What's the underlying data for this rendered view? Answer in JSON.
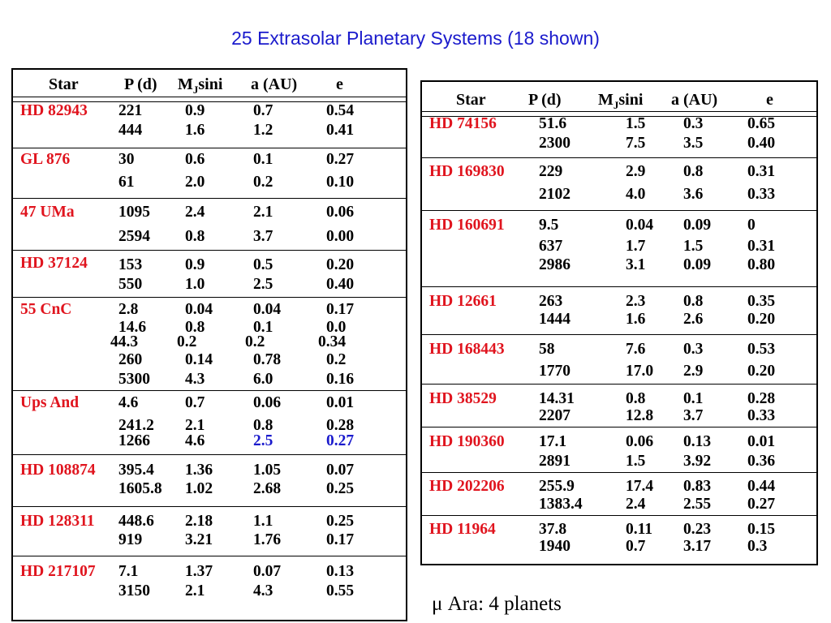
{
  "title": "25 Extrasolar Planetary Systems (18 shown)",
  "header": {
    "star": "Star",
    "period": "P (d)",
    "mass_prefix": "M",
    "mass_sub": "J",
    "mass_suffix": "sini",
    "axis": "a (AU)",
    "ecc": "e"
  },
  "colors": {
    "title": "#1a1acc",
    "star_name": "#e0141e",
    "text": "#000000",
    "highlight": "#1a1acc"
  },
  "left_table": [
    {
      "star": "HD 82943",
      "planets": [
        [
          "221",
          "0.9",
          "0.7",
          "0.54"
        ],
        [
          "444",
          "1.6",
          "1.2",
          "0.41"
        ]
      ]
    },
    {
      "star": "GL 876",
      "planets": [
        [
          "30",
          "0.6",
          "0.1",
          "0.27"
        ],
        [
          "61",
          "2.0",
          "0.2",
          "0.10"
        ]
      ]
    },
    {
      "star": "47 UMa",
      "planets": [
        [
          "1095",
          "2.4",
          "2.1",
          "0.06"
        ],
        [
          "2594",
          "0.8",
          "3.7",
          "0.00"
        ]
      ]
    },
    {
      "star": "HD 37124",
      "planets": [
        [
          "153",
          "0.9",
          "0.5",
          "0.20"
        ],
        [
          "550",
          "1.0",
          "2.5",
          "0.40"
        ]
      ]
    },
    {
      "star": "55 CnC",
      "planets": [
        [
          "2.8",
          "0.04",
          "0.04",
          "0.17"
        ],
        [
          "14.6",
          "0.8",
          "0.1",
          "0.0"
        ],
        [
          "44.3",
          "0.2",
          "0.2",
          "0.34"
        ],
        [
          "260",
          "0.14",
          "0.78",
          "0.2"
        ],
        [
          "5300",
          "4.3",
          "6.0",
          "0.16"
        ]
      ]
    },
    {
      "star": "Ups And",
      "planets": [
        [
          "4.6",
          "0.7",
          "0.06",
          "0.01"
        ],
        [
          "241.2",
          "2.1",
          "0.8",
          "0.28"
        ],
        [
          "1266",
          "4.6",
          "2.5",
          "0.27"
        ]
      ]
    },
    {
      "star": "HD 108874",
      "planets": [
        [
          "395.4",
          "1.36",
          "1.05",
          "0.07"
        ],
        [
          "1605.8",
          "1.02",
          "2.68",
          "0.25"
        ]
      ]
    },
    {
      "star": "HD 128311",
      "planets": [
        [
          "448.6",
          "2.18",
          "1.1",
          "0.25"
        ],
        [
          "919",
          "3.21",
          "1.76",
          "0.17"
        ]
      ]
    },
    {
      "star": "HD 217107",
      "planets": [
        [
          "7.1",
          "1.37",
          "0.07",
          "0.13"
        ],
        [
          "3150",
          "2.1",
          "4.3",
          "0.55"
        ]
      ]
    }
  ],
  "right_table": [
    {
      "star": "HD 74156",
      "planets": [
        [
          "51.6",
          "1.5",
          "0.3",
          "0.65"
        ],
        [
          "2300",
          "7.5",
          "3.5",
          "0.40"
        ]
      ]
    },
    {
      "star": "HD 169830",
      "planets": [
        [
          "229",
          "2.9",
          "0.8",
          "0.31"
        ],
        [
          "2102",
          "4.0",
          "3.6",
          "0.33"
        ]
      ]
    },
    {
      "star": "HD 160691",
      "planets": [
        [
          "9.5",
          "0.04",
          "0.09",
          "0"
        ],
        [
          "637",
          "1.7",
          "1.5",
          "0.31"
        ],
        [
          "2986",
          "3.1",
          "0.09",
          "0.80"
        ]
      ]
    },
    {
      "star": "HD 12661",
      "planets": [
        [
          "263",
          "2.3",
          "0.8",
          "0.35"
        ],
        [
          "1444",
          "1.6",
          "2.6",
          "0.20"
        ]
      ]
    },
    {
      "star": "HD 168443",
      "planets": [
        [
          "58",
          "7.6",
          "0.3",
          "0.53"
        ],
        [
          "1770",
          "17.0",
          "2.9",
          "0.20"
        ]
      ]
    },
    {
      "star": "HD 38529",
      "planets": [
        [
          "14.31",
          "0.8",
          "0.1",
          "0.28"
        ],
        [
          "2207",
          "12.8",
          "3.7",
          "0.33"
        ]
      ]
    },
    {
      "star": "HD 190360",
      "planets": [
        [
          "17.1",
          "0.06",
          "0.13",
          "0.01"
        ],
        [
          "2891",
          "1.5",
          "3.92",
          "0.36"
        ]
      ]
    },
    {
      "star": "HD 202206",
      "planets": [
        [
          "255.9",
          "17.4",
          "0.83",
          "0.44"
        ],
        [
          "1383.4",
          "2.4",
          "2.55",
          "0.27"
        ]
      ]
    },
    {
      "star": "HD 11964",
      "planets": [
        [
          "37.8",
          "0.11",
          "0.23",
          "0.15"
        ],
        [
          "1940",
          "0.7",
          "3.17",
          "0.3"
        ]
      ]
    }
  ],
  "note": "μ Ara: 4 planets"
}
